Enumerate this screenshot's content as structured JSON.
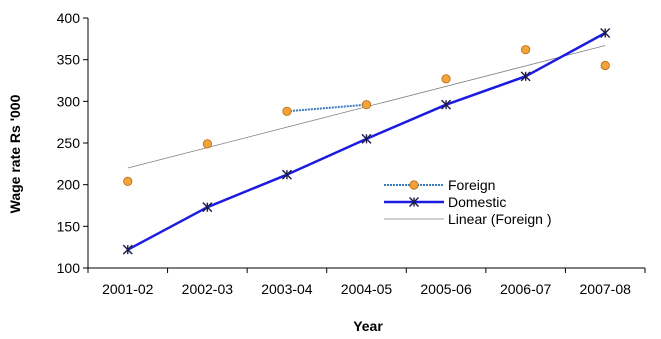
{
  "chart_data": {
    "type": "line",
    "title": "",
    "xlabel": "Year",
    "ylabel": "Wage rate Rs '000",
    "categories": [
      "2001-02",
      "2002-03",
      "2003-04",
      "2004-05",
      "2005-06",
      "2006-07",
      "2007-08"
    ],
    "ylim": [
      100,
      400
    ],
    "yticks": [
      100,
      150,
      200,
      250,
      300,
      350,
      400
    ],
    "grid": false,
    "legend_position": "right-middle",
    "series": [
      {
        "name": "Foreign",
        "style": "markers-orange-circle",
        "color": "#F4A23A",
        "values": [
          204,
          249,
          288,
          296,
          327,
          362,
          343
        ],
        "connected_segment": [
          2,
          3
        ],
        "segment_color": "#3A7CC0"
      },
      {
        "name": "Domestic",
        "style": "line-with-star-markers",
        "color": "#1C1CE0",
        "values": [
          122,
          173,
          212,
          255,
          296,
          330,
          382
        ]
      },
      {
        "name": "Linear (Foreign )",
        "style": "thin-trend-line",
        "color": "#808080",
        "values": [
          220,
          244.5,
          269,
          293.5,
          318,
          342.5,
          367
        ]
      }
    ]
  }
}
